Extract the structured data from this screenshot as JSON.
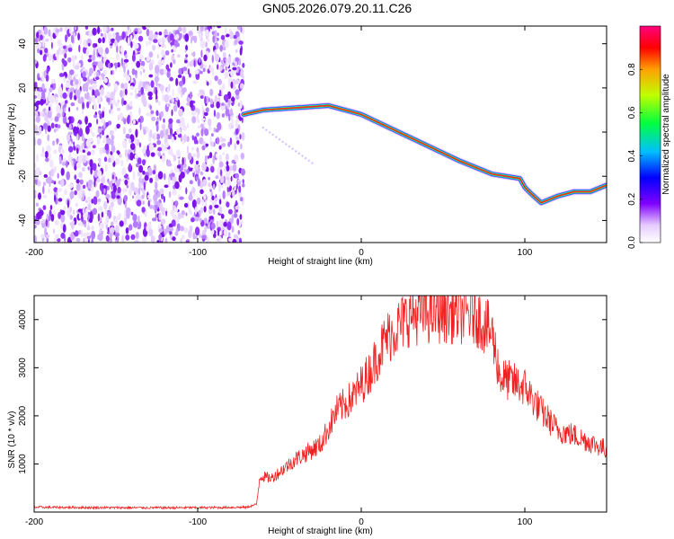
{
  "title": "GN05.2026.079.20.11.C26",
  "chart_data": [
    {
      "type": "heatmap",
      "name": "spectrogram",
      "xlabel": "Height of straight line (km)",
      "ylabel": "Frequency (Hz)",
      "xlim": [
        -200,
        150
      ],
      "ylim": [
        -50,
        48
      ],
      "xticks": [
        -200,
        -100,
        0,
        100
      ],
      "yticks": [
        -40,
        -20,
        0,
        20,
        40
      ],
      "noise_region": {
        "x": [
          -200,
          -72
        ],
        "y": [
          -50,
          48
        ],
        "amplitude": 0.05
      },
      "ridge": {
        "x": [
          -72,
          -60,
          -40,
          -20,
          0,
          20,
          40,
          60,
          80,
          97,
          100,
          104,
          110,
          120,
          130,
          140,
          150
        ],
        "y": [
          8,
          10,
          11,
          12,
          8,
          1,
          -6,
          -13,
          -19,
          -21,
          -25,
          -28,
          -32,
          -29,
          -27,
          -27,
          -24
        ],
        "amplitude": 1.0
      },
      "colorbar": {
        "label": "Normalized spectral amplitude",
        "ticks": [
          0.0,
          0.2,
          0.4,
          0.6,
          0.8
        ],
        "range": [
          0,
          1
        ]
      }
    },
    {
      "type": "line",
      "name": "snr",
      "xlabel": "Height of straight line (km)",
      "ylabel": "SNR (10 * v/v)",
      "xlim": [
        -200,
        150
      ],
      "ylim": [
        0,
        4500
      ],
      "xticks": [
        -200,
        -100,
        0,
        100
      ],
      "yticks": [
        1000,
        2000,
        3000,
        4000
      ],
      "series": [
        {
          "name": "SNR",
          "color": "#ee2222",
          "x": [
            -200,
            -150,
            -100,
            -70,
            -64,
            -62,
            -55,
            -40,
            -25,
            -15,
            -5,
            5,
            15,
            30,
            45,
            55,
            70,
            80,
            85,
            100,
            110,
            120,
            130,
            150
          ],
          "y": [
            100,
            90,
            90,
            100,
            160,
            750,
            700,
            1100,
            1400,
            2100,
            2400,
            2900,
            3600,
            4100,
            4150,
            4150,
            4100,
            3700,
            2800,
            2600,
            2100,
            1700,
            1600,
            1300
          ]
        }
      ]
    }
  ]
}
